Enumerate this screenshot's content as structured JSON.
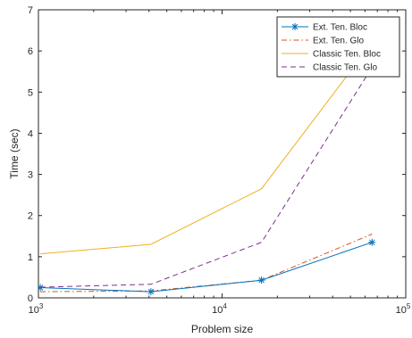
{
  "chart_data": {
    "type": "line",
    "title": "",
    "xlabel": "Problem size",
    "ylabel": "Time (sec)",
    "xscale": "log",
    "xlim": [
      1000,
      100000
    ],
    "ylim": [
      0,
      7
    ],
    "xticks": [
      {
        "value": 1000,
        "base": "10",
        "exp": "3"
      },
      {
        "value": 10000,
        "base": "10",
        "exp": "4"
      },
      {
        "value": 100000,
        "base": "10",
        "exp": "5"
      }
    ],
    "yticks": [
      "0",
      "1",
      "2",
      "3",
      "4",
      "5",
      "6",
      "7"
    ],
    "grid": false,
    "legend_position": "top-right",
    "x": [
      1024,
      4096,
      16384,
      65536
    ],
    "series": [
      {
        "name": "Ext. Ten. Bloc",
        "values": [
          0.25,
          0.15,
          0.43,
          1.35
        ],
        "color": "#0072BD",
        "style": "solid",
        "marker": "asterisk"
      },
      {
        "name": "Ext. Ten. Glo",
        "values": [
          0.15,
          0.17,
          0.43,
          1.55
        ],
        "color": "#D95319",
        "style": "dashdot",
        "marker": "none"
      },
      {
        "name": "Classic Ten. Bloc",
        "values": [
          1.07,
          1.3,
          2.65,
          6.2
        ],
        "color": "#EDB120",
        "style": "solid",
        "marker": "none"
      },
      {
        "name": "Classic Ten. Glo",
        "values": [
          0.26,
          0.33,
          1.35,
          5.6
        ],
        "color": "#7E2F8E",
        "style": "dashed",
        "marker": "none"
      }
    ]
  }
}
